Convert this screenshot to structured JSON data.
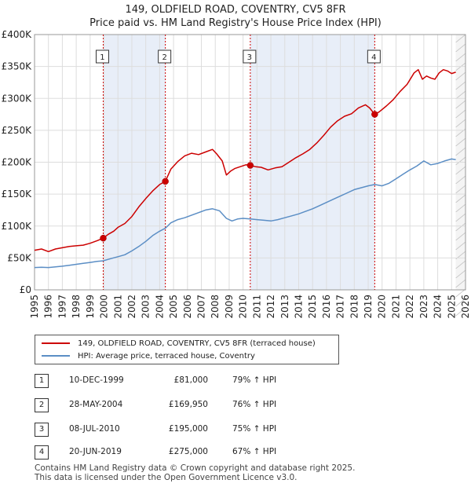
{
  "title_line1": "149, OLDFIELD ROAD, COVENTRY, CV5 8FR",
  "title_line2": "Price paid vs. HM Land Registry's House Price Index (HPI)",
  "chart_data": {
    "type": "line",
    "xlabel": "",
    "ylabel": "",
    "xlim": [
      1995,
      2026
    ],
    "ylim": [
      0,
      400000
    ],
    "y_ticks": [
      0,
      50000,
      100000,
      150000,
      200000,
      250000,
      300000,
      350000,
      400000
    ],
    "y_tick_labels": [
      "£0",
      "£50K",
      "£100K",
      "£150K",
      "£200K",
      "£250K",
      "£300K",
      "£350K",
      "£400K"
    ],
    "x_ticks": [
      1995,
      1996,
      1997,
      1998,
      1999,
      2000,
      2001,
      2002,
      2003,
      2004,
      2005,
      2006,
      2007,
      2008,
      2009,
      2010,
      2011,
      2012,
      2013,
      2014,
      2015,
      2016,
      2017,
      2018,
      2019,
      2020,
      2021,
      2022,
      2023,
      2024,
      2025,
      2026
    ],
    "grid": true,
    "series": [
      {
        "name": "149, OLDFIELD ROAD, COVENTRY, CV5 8FR (terraced house)",
        "color": "#cc0000",
        "x": [
          1995.0,
          1995.5,
          1996.0,
          1996.5,
          1997.0,
          1997.5,
          1998.0,
          1998.5,
          1999.0,
          1999.5,
          1999.94,
          2000.3,
          2000.7,
          2001.0,
          2001.5,
          2002.0,
          2002.5,
          2003.0,
          2003.5,
          2004.0,
          2004.41,
          2004.8,
          2005.3,
          2005.8,
          2006.3,
          2006.8,
          2007.3,
          2007.8,
          2008.1,
          2008.5,
          2008.8,
          2009.1,
          2009.4,
          2009.8,
          2010.2,
          2010.52,
          2010.9,
          2011.3,
          2011.8,
          2012.3,
          2012.8,
          2013.3,
          2013.8,
          2014.3,
          2014.8,
          2015.3,
          2015.8,
          2016.3,
          2016.8,
          2017.3,
          2017.8,
          2018.3,
          2018.8,
          2019.1,
          2019.47,
          2019.8,
          2020.3,
          2020.8,
          2021.3,
          2021.8,
          2022.3,
          2022.6,
          2022.9,
          2023.2,
          2023.5,
          2023.8,
          2024.1,
          2024.4,
          2024.7,
          2025.0,
          2025.3
        ],
        "values": [
          62000,
          64000,
          60000,
          64000,
          66000,
          68000,
          69000,
          70000,
          73000,
          77000,
          81000,
          87000,
          92000,
          98000,
          104000,
          115000,
          130000,
          143000,
          155000,
          165000,
          169950,
          189000,
          201000,
          210000,
          214000,
          212000,
          216000,
          220000,
          213000,
          202000,
          180000,
          186000,
          190000,
          193000,
          196000,
          195000,
          193000,
          192000,
          188000,
          191000,
          193000,
          200000,
          207000,
          213000,
          220000,
          230000,
          242000,
          255000,
          265000,
          272000,
          276000,
          285000,
          290000,
          285000,
          275000,
          279000,
          288000,
          298000,
          311000,
          322000,
          340000,
          345000,
          330000,
          335000,
          332000,
          330000,
          340000,
          345000,
          343000,
          339000,
          341000
        ]
      },
      {
        "name": "HPI: Average price, terraced house, Coventry",
        "color": "#5b8ec5",
        "x": [
          1995.0,
          1995.5,
          1996.0,
          1996.5,
          1997.0,
          1997.5,
          1998.0,
          1998.5,
          1999.0,
          1999.5,
          1999.94,
          2000.5,
          2001.0,
          2001.5,
          2002.0,
          2002.5,
          2003.0,
          2003.5,
          2004.0,
          2004.41,
          2004.8,
          2005.3,
          2005.8,
          2006.3,
          2006.8,
          2007.3,
          2007.8,
          2008.3,
          2008.8,
          2009.2,
          2009.6,
          2010.0,
          2010.52,
          2011.0,
          2011.5,
          2012.0,
          2012.5,
          2013.0,
          2013.5,
          2014.0,
          2014.5,
          2015.0,
          2015.5,
          2016.0,
          2016.5,
          2017.0,
          2017.5,
          2018.0,
          2018.5,
          2019.0,
          2019.47,
          2020.0,
          2020.5,
          2021.0,
          2021.5,
          2022.0,
          2022.5,
          2023.0,
          2023.5,
          2024.0,
          2024.5,
          2025.0,
          2025.3
        ],
        "values": [
          35000,
          35500,
          35000,
          36000,
          37000,
          38500,
          40000,
          41500,
          43000,
          44500,
          45500,
          49000,
          52000,
          55000,
          61000,
          68000,
          76000,
          85000,
          92000,
          96500,
          105000,
          110000,
          113000,
          117000,
          121000,
          125000,
          127000,
          124000,
          112000,
          108000,
          111000,
          112000,
          111000,
          110000,
          109000,
          108000,
          110000,
          113000,
          116000,
          119000,
          123000,
          127000,
          132000,
          137000,
          142000,
          147000,
          152000,
          157000,
          160000,
          163000,
          165000,
          163000,
          167000,
          174000,
          181000,
          188000,
          194000,
          202000,
          196000,
          198000,
          202000,
          205000,
          204000
        ]
      }
    ],
    "sale_markers": [
      {
        "id": "1",
        "x": 1999.94,
        "value": 81000
      },
      {
        "id": "2",
        "x": 2004.41,
        "value": 169950
      },
      {
        "id": "3",
        "x": 2010.52,
        "value": 195000
      },
      {
        "id": "4",
        "x": 2019.47,
        "value": 275000
      }
    ],
    "shaded_periods": [
      [
        1999.94,
        2004.41
      ],
      [
        2010.52,
        2019.47
      ]
    ],
    "forecast_start": 2025.3,
    "colors": {
      "property": "#cc0000",
      "hpi": "#5b8ec5",
      "shade": "#e8eef8",
      "vline": "#cc0000"
    }
  },
  "legend": {
    "property_label": "149, OLDFIELD ROAD, COVENTRY, CV5 8FR (terraced house)",
    "hpi_label": "HPI: Average price, terraced house, Coventry"
  },
  "transactions": [
    {
      "num": "1",
      "date": "10-DEC-1999",
      "price": "£81,000",
      "hpi": "79% ↑ HPI"
    },
    {
      "num": "2",
      "date": "28-MAY-2004",
      "price": "£169,950",
      "hpi": "76% ↑ HPI"
    },
    {
      "num": "3",
      "date": "08-JUL-2010",
      "price": "£195,000",
      "hpi": "75% ↑ HPI"
    },
    {
      "num": "4",
      "date": "20-JUN-2019",
      "price": "£275,000",
      "hpi": "67% ↑ HPI"
    }
  ],
  "footer_line1": "Contains HM Land Registry data © Crown copyright and database right 2025.",
  "footer_line2": "This data is licensed under the Open Government Licence v3.0."
}
